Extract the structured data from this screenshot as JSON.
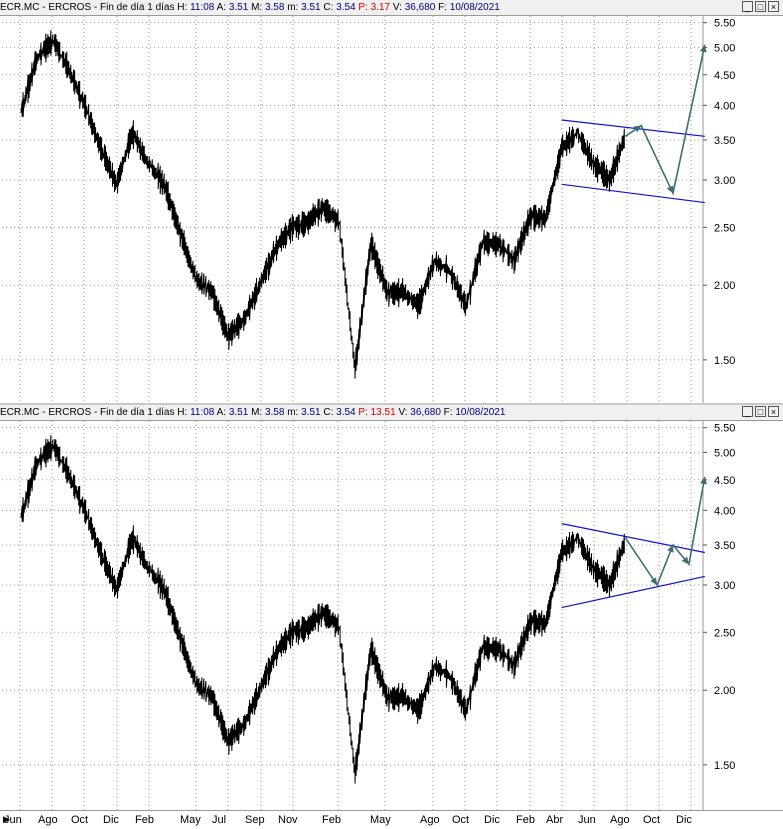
{
  "panels": [
    {
      "title": {
        "symbol": "ECR.MC - ERCROS - Fin de día 1 días",
        "H_label": "H:",
        "H_value": "11:08",
        "A_label": "A:",
        "A_value": "3.51",
        "M_label": "M:",
        "M_value": "3.58",
        "m_label": "m:",
        "m_value": "3.51",
        "C_label": "C:",
        "C_value": "3.54",
        "P_label": "P:",
        "P_value": "3.17",
        "V_label": "V:",
        "V_value": "36,680",
        "F_label": "F:",
        "F_value": "10/08/2021"
      },
      "window_buttons": [
        "_",
        "□",
        "×"
      ]
    },
    {
      "title": {
        "symbol": "ECR.MC - ERCROS - Fin de día 1 días",
        "H_label": "H:",
        "H_value": "11:08",
        "A_label": "A:",
        "A_value": "3.51",
        "M_label": "M:",
        "M_value": "3.58",
        "m_label": "m:",
        "m_value": "3.51",
        "C_label": "C:",
        "C_value": "3.54",
        "P_label": "P:",
        "P_value": "13.51",
        "V_label": "V:",
        "V_value": "36,680",
        "F_label": "F:",
        "F_value": "10/08/2021"
      },
      "window_buttons": [
        "_",
        "□",
        "×"
      ]
    }
  ],
  "x_axis": {
    "labels": [
      "Jun",
      "Ago",
      "Oct",
      "Dic",
      "Feb",
      "May",
      "Jul",
      "Sep",
      "Nov",
      "Feb",
      "May",
      "Ago",
      "Oct",
      "Dic",
      "Feb",
      "Abr",
      "Jun",
      "Ago",
      "Oct",
      "Dic"
    ],
    "left_arrow_icon": "triangle-right-icon"
  },
  "chart_data": [
    {
      "type": "line",
      "scale": "log",
      "ylim": [
        1.3,
        5.6
      ],
      "y_ticks": [
        5.5,
        5.0,
        4.5,
        4.0,
        3.5,
        3.0,
        2.5,
        2.0,
        1.5
      ],
      "series": [
        {
          "x": [
            "2018-06",
            "2018-07",
            "2018-08",
            "2018-09",
            "2018-10",
            "2018-11",
            "2018-12",
            "2019-01",
            "2019-02",
            "2019-03",
            "2019-04",
            "2019-05",
            "2019-06",
            "2019-07",
            "2019-08",
            "2019-09",
            "2019-10",
            "2019-11",
            "2019-12",
            "2020-01",
            "2020-02",
            "2020-03",
            "2020-04",
            "2020-05",
            "2020-06",
            "2020-07",
            "2020-08",
            "2020-09",
            "2020-10",
            "2020-11",
            "2020-12",
            "2021-01",
            "2021-02",
            "2021-03",
            "2021-04",
            "2021-05",
            "2021-06",
            "2021-07",
            "2021-08"
          ],
          "values": [
            3.9,
            4.8,
            5.15,
            4.6,
            4.0,
            3.4,
            2.95,
            3.6,
            3.2,
            2.95,
            2.45,
            2.05,
            1.95,
            1.65,
            1.75,
            2.0,
            2.3,
            2.5,
            2.55,
            2.7,
            2.55,
            1.45,
            2.35,
            1.95,
            1.95,
            1.85,
            2.2,
            2.1,
            1.85,
            2.35,
            2.35,
            2.2,
            2.6,
            2.6,
            3.4,
            3.6,
            3.2,
            3.0,
            3.55
          ]
        }
      ],
      "channel": {
        "upper": [
          [
            3.78,
            "2021-04"
          ],
          [
            3.55,
            "2022-01"
          ]
        ],
        "lower": [
          [
            2.95,
            "2021-04"
          ],
          [
            2.75,
            "2022-01"
          ]
        ]
      },
      "projection": [
        [
          3.55,
          "2021-08"
        ],
        [
          3.7,
          "2021-09"
        ],
        [
          2.85,
          "2021-11"
        ],
        [
          5.05,
          "2022-01"
        ]
      ]
    },
    {
      "type": "line",
      "scale": "log",
      "ylim": [
        1.3,
        5.6
      ],
      "y_ticks": [
        5.5,
        5.0,
        4.5,
        4.0,
        3.5,
        3.0,
        2.5,
        2.0,
        1.5
      ],
      "series": [
        {
          "x": [
            "2018-06",
            "2018-07",
            "2018-08",
            "2018-09",
            "2018-10",
            "2018-11",
            "2018-12",
            "2019-01",
            "2019-02",
            "2019-03",
            "2019-04",
            "2019-05",
            "2019-06",
            "2019-07",
            "2019-08",
            "2019-09",
            "2019-10",
            "2019-11",
            "2019-12",
            "2020-01",
            "2020-02",
            "2020-03",
            "2020-04",
            "2020-05",
            "2020-06",
            "2020-07",
            "2020-08",
            "2020-09",
            "2020-10",
            "2020-11",
            "2020-12",
            "2021-01",
            "2021-02",
            "2021-03",
            "2021-04",
            "2021-05",
            "2021-06",
            "2021-07",
            "2021-08"
          ],
          "values": [
            3.9,
            4.8,
            5.15,
            4.6,
            4.0,
            3.4,
            2.95,
            3.6,
            3.2,
            2.95,
            2.45,
            2.05,
            1.95,
            1.65,
            1.75,
            2.0,
            2.3,
            2.5,
            2.55,
            2.7,
            2.55,
            1.45,
            2.35,
            1.95,
            1.95,
            1.85,
            2.2,
            2.1,
            1.85,
            2.35,
            2.35,
            2.2,
            2.6,
            2.6,
            3.4,
            3.6,
            3.2,
            3.0,
            3.55
          ]
        }
      ],
      "channel": {
        "upper": [
          [
            3.8,
            "2021-04"
          ],
          [
            3.4,
            "2022-01"
          ]
        ],
        "lower": [
          [
            2.75,
            "2021-04"
          ],
          [
            3.1,
            "2022-01"
          ]
        ]
      },
      "projection": [
        [
          3.6,
          "2021-08"
        ],
        [
          3.0,
          "2021-10"
        ],
        [
          3.5,
          "2021-11"
        ],
        [
          3.25,
          "2021-12"
        ],
        [
          4.55,
          "2022-01"
        ]
      ]
    }
  ]
}
